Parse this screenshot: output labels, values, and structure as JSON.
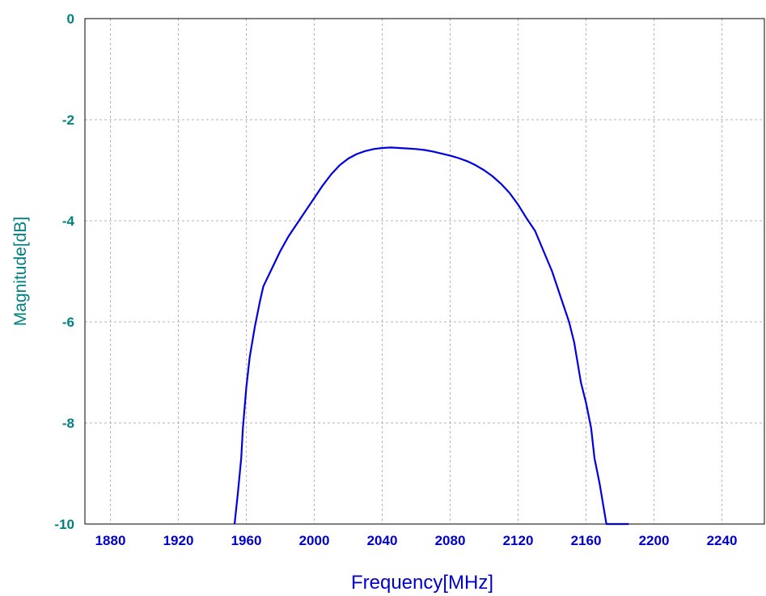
{
  "chart_data": {
    "type": "line",
    "title": "",
    "xlabel": "Frequency[MHz]",
    "ylabel": "Magnitude[dB]",
    "xlim": [
      1865,
      2265
    ],
    "ylim": [
      -10,
      0
    ],
    "x_ticks": [
      1880,
      1920,
      1960,
      2000,
      2040,
      2080,
      2120,
      2160,
      2200,
      2240
    ],
    "y_ticks": [
      0,
      -2,
      -4,
      -6,
      -8,
      -10
    ],
    "x_tick_labels": [
      "1880",
      "1920",
      "1960",
      "2000",
      "2040",
      "2080",
      "2120",
      "2160",
      "2200",
      "2240"
    ],
    "y_tick_labels": [
      "0",
      "-2",
      "-4",
      "-6",
      "-8",
      "-10"
    ],
    "grid": true,
    "colors": {
      "line": "#0000e0",
      "grid": "#b4b4b4",
      "y_axis_text": "#008080",
      "x_axis_text": "#0000cd",
      "frame": "#000000"
    },
    "series": [
      {
        "x": [
          1953.1,
          1955,
          1957,
          1958,
          1960,
          1962,
          1965,
          1968,
          1970,
          1975,
          1980,
          1985,
          1990,
          1995,
          2000,
          2005,
          2010,
          2015,
          2020,
          2025,
          2030,
          2035,
          2040,
          2045,
          2050,
          2055,
          2060,
          2065,
          2070,
          2075,
          2080,
          2085,
          2090,
          2095,
          2100,
          2105,
          2110,
          2115,
          2120,
          2125,
          2130,
          2135,
          2140,
          2145,
          2150,
          2153,
          2155,
          2157,
          2160,
          2163,
          2165,
          2168,
          2170,
          2172,
          2174,
          2176,
          2178,
          2180,
          2182,
          2184,
          2185.2
        ],
        "y": [
          -10,
          -9.4,
          -8.7,
          -8.1,
          -7.3,
          -6.7,
          -6.1,
          -5.6,
          -5.3,
          -4.95,
          -4.6,
          -4.3,
          -4.05,
          -3.8,
          -3.55,
          -3.3,
          -3.08,
          -2.9,
          -2.77,
          -2.68,
          -2.62,
          -2.58,
          -2.56,
          -2.55,
          -2.56,
          -2.57,
          -2.58,
          -2.6,
          -2.63,
          -2.67,
          -2.71,
          -2.76,
          -2.82,
          -2.9,
          -3.0,
          -3.12,
          -3.27,
          -3.45,
          -3.68,
          -3.95,
          -4.2,
          -4.6,
          -5.0,
          -5.5,
          -6.0,
          -6.4,
          -6.8,
          -7.2,
          -7.6,
          -8.1,
          -8.7,
          -9.2,
          -9.6,
          -10.0,
          -10.0,
          -10.0,
          -10.0,
          -10.0,
          -10.0,
          -10.0,
          -10.0
        ]
      }
    ]
  }
}
